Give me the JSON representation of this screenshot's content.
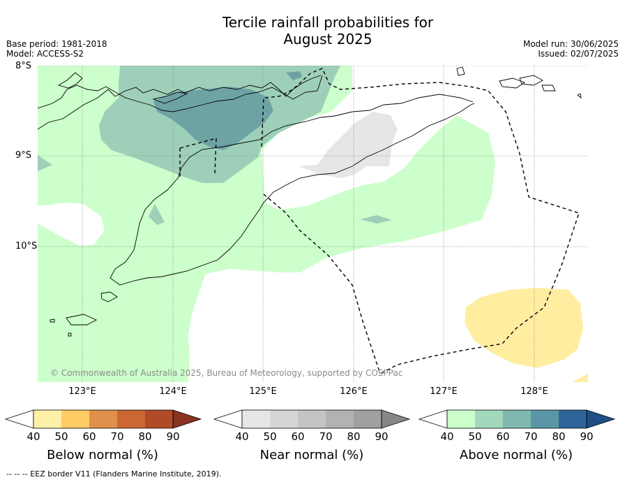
{
  "title_line1": "Tercile rainfall probabilities for",
  "title_line2": "August 2025",
  "base_period": "Base period: 1981-2018",
  "model": "Model: ACCESS-S2",
  "model_run": "Model run: 30/06/2025",
  "issued": "Issued: 02/07/2025",
  "latitudes": [
    "8°S",
    "9°S",
    "10°S"
  ],
  "longitudes": [
    "123°E",
    "124°E",
    "125°E",
    "126°E",
    "127°E",
    "128°E"
  ],
  "credit": "© Commonwealth of Australia 2025, Bureau of Meteorology, supported by COSPPac",
  "footer": "--  --  -- EEZ border V11 (Flanders Marine Institute, 2019).",
  "legends": [
    {
      "title": "Below normal (%)",
      "ticks": [
        "40",
        "50",
        "60",
        "70",
        "80",
        "90"
      ],
      "colors": [
        "#fff0a8",
        "#fecb65",
        "#e0904a",
        "#cc6633",
        "#b04b28",
        "#8a3322"
      ]
    },
    {
      "title": "Near normal (%)",
      "ticks": [
        "40",
        "50",
        "60",
        "70",
        "80",
        "90"
      ],
      "colors": [
        "#e6e6e6",
        "#d6d6d6",
        "#c4c4c4",
        "#b2b2b2",
        "#a0a0a0",
        "#878787"
      ]
    },
    {
      "title": "Above normal (%)",
      "ticks": [
        "40",
        "50",
        "60",
        "70",
        "80",
        "90"
      ],
      "colors": [
        "#ccffcc",
        "#a4d8bc",
        "#80b8b0",
        "#5b96a6",
        "#2f6499",
        "#1f4f86"
      ]
    }
  ],
  "colors": {
    "above_40": "#ccffcc",
    "above_50": "#9ecfb8",
    "above_60": "#6ea3a6",
    "near_40": "#e6e6e6",
    "below_40": "#ffeda0",
    "grid": "#888888",
    "coast": "#000000"
  }
}
